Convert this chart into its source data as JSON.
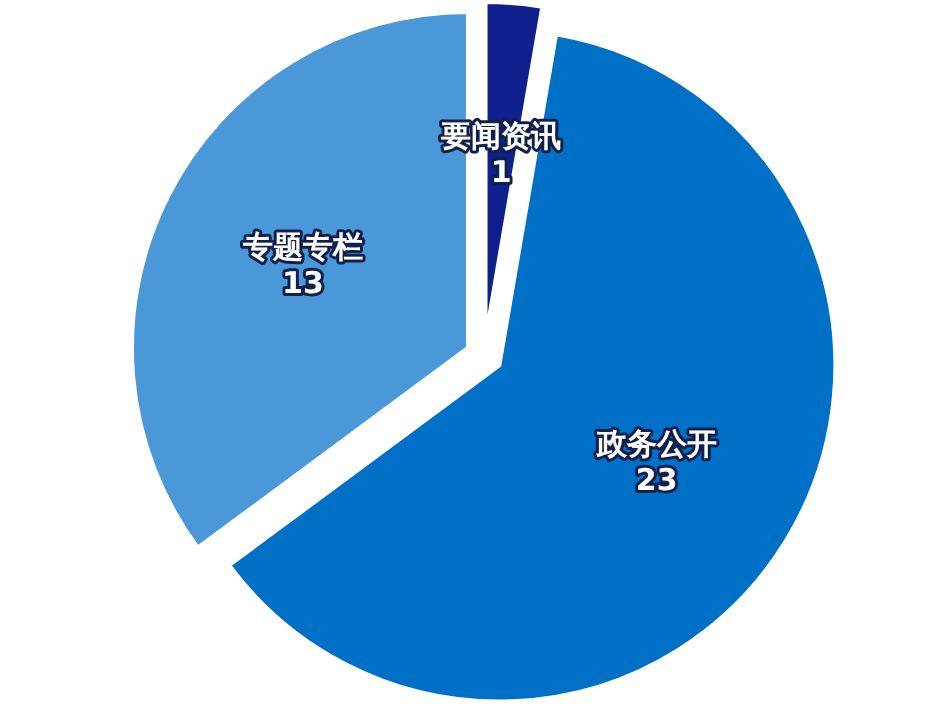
{
  "chart_data": {
    "type": "pie",
    "categories": [
      "要闻资讯",
      "政务公开",
      "专题专栏"
    ],
    "values": [
      1,
      23,
      13
    ],
    "colors": [
      "#0f1f8c",
      "#0070c6",
      "#4a98d8"
    ],
    "data_labels": true
  }
}
